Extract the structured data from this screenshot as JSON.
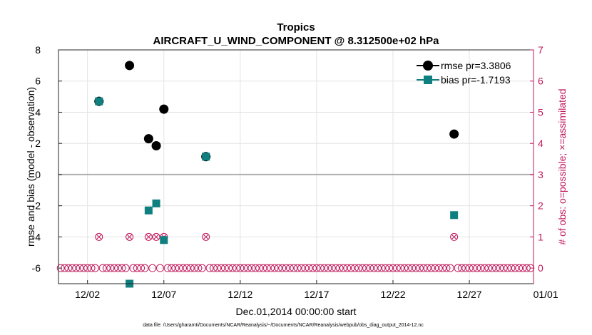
{
  "chart_data": {
    "type": "scatter",
    "title": "Tropics",
    "subtitle": "AIRCRAFT_U_WIND_COMPONENT @ 8.312500e+02 hPa",
    "xlabel": "Dec.01,2014 00:00:00 start",
    "ylabel_left": "rmse and bias (model - observation)",
    "ylabel_right": "# of obs: o=possible; ×=assimilated",
    "footnote": "data file: /Users/gharamti/Documents/NCAR/Reanalysis/~/Documents/NCAR/Reanalysis/webpub/obs_diag_output_2014-12.nc",
    "xlim": [
      0.1,
      31.2
    ],
    "ylim_left": [
      -7,
      8
    ],
    "ylim_right": [
      -0.5,
      7
    ],
    "x_ticks": [
      {
        "value": 2,
        "label": "12/02"
      },
      {
        "value": 7,
        "label": "12/07"
      },
      {
        "value": 12,
        "label": "12/12"
      },
      {
        "value": 17,
        "label": "12/17"
      },
      {
        "value": 22,
        "label": "12/22"
      },
      {
        "value": 27,
        "label": "12/27"
      },
      {
        "value": 32,
        "label": "01/01"
      }
    ],
    "y_ticks_left": [
      8,
      6,
      4,
      2,
      0,
      -2,
      -4,
      -6
    ],
    "y_ticks_right": [
      7,
      6,
      5,
      4,
      3,
      2,
      1,
      0
    ],
    "zero_line": 0,
    "grid": true,
    "legend": {
      "position": "top-right",
      "entries": [
        "rmse pr=3.3806",
        "bias pr=-1.7193"
      ]
    },
    "series": [
      {
        "name": "rmse pr=3.3806",
        "color": "#000000",
        "marker": "circle",
        "points": [
          [
            2.75,
            4.7
          ],
          [
            4.75,
            7.0
          ],
          [
            6.0,
            2.3
          ],
          [
            6.5,
            1.85
          ],
          [
            7.0,
            4.2
          ],
          [
            9.75,
            1.15
          ],
          [
            26.0,
            2.6
          ]
        ]
      },
      {
        "name": "bias pr=-1.7193",
        "color": "#0f7f7f",
        "marker": "square",
        "points": [
          [
            2.75,
            4.7
          ],
          [
            4.75,
            -7.0
          ],
          [
            6.0,
            -2.3
          ],
          [
            6.5,
            -1.85
          ],
          [
            7.0,
            -4.2
          ],
          [
            9.75,
            1.15
          ],
          [
            26.0,
            -2.6
          ]
        ]
      }
    ],
    "obs_counts": {
      "axis": "right",
      "color": "#c2185b",
      "x_start": 0.25,
      "x_step": 0.25,
      "count": 124,
      "nonzero": [
        [
          2.75,
          1
        ],
        [
          4.75,
          1
        ],
        [
          6.0,
          1
        ],
        [
          6.5,
          1
        ],
        [
          7.0,
          1
        ],
        [
          9.75,
          1
        ],
        [
          26.0,
          1
        ]
      ]
    }
  }
}
